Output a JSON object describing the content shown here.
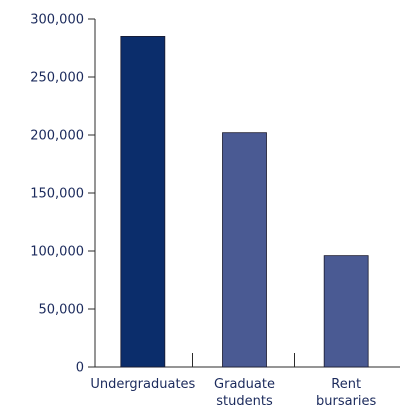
{
  "chart_data": {
    "type": "bar",
    "categories": [
      [
        "Undergraduates"
      ],
      [
        "Graduate",
        "students"
      ],
      [
        "Rent",
        "bursaries"
      ]
    ],
    "values": [
      285000,
      202000,
      96000
    ],
    "colors": [
      "#0b2d6b",
      "#4a5a93",
      "#4a5a93"
    ],
    "title": "",
    "xlabel": "",
    "ylabel": "",
    "ylim": [
      0,
      300000
    ],
    "yticks": [
      0,
      50000,
      100000,
      150000,
      200000,
      250000,
      300000
    ],
    "ytick_labels": [
      "0",
      "50,000",
      "100,000",
      "150,000",
      "200,000",
      "250,000",
      "300,000"
    ],
    "grid": false,
    "legend": "none"
  }
}
